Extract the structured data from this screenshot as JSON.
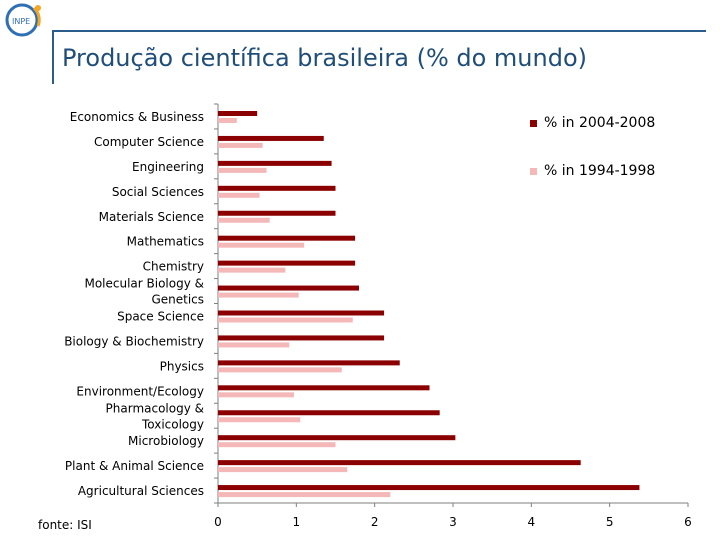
{
  "title": "Produção científica brasileira (% do mundo)",
  "source": "fonte: ISI",
  "colors": {
    "title": "#1f4e79",
    "frame": "#2b5d8c",
    "series_2004": "#8b0000",
    "series_1994": "#f4b8b8"
  },
  "logo": {
    "icon": "ufmg-logo-icon"
  },
  "chart_data": {
    "type": "bar",
    "orientation": "horizontal",
    "categories": [
      "Economics & Business",
      "Computer Science",
      "Engineering",
      "Social Sciences",
      "Materials Science",
      "Mathematics",
      "Chemistry",
      "Molecular Biology & Genetics",
      "Space Science",
      "Biology & Biochemistry",
      "Physics",
      "Environment/Ecology",
      "Pharmacology & Toxicology",
      "Microbiology",
      "Plant & Animal Science",
      "Agricultural Sciences"
    ],
    "category_lines": [
      [
        "Economics & Business"
      ],
      [
        "Computer Science"
      ],
      [
        "Engineering"
      ],
      [
        "Social Sciences"
      ],
      [
        "Materials Science"
      ],
      [
        "Mathematics"
      ],
      [
        "Chemistry"
      ],
      [
        "Molecular Biology &",
        "Genetics"
      ],
      [
        "Space Science"
      ],
      [
        "Biology & Biochemistry"
      ],
      [
        "Physics"
      ],
      [
        "Environment/Ecology"
      ],
      [
        "Pharmacology &",
        "Toxicology"
      ],
      [
        "Microbiology"
      ],
      [
        "Plant & Animal Science"
      ],
      [
        "Agricultural Sciences"
      ]
    ],
    "series": [
      {
        "name": "% in 2004-2008",
        "values": [
          0.5,
          1.35,
          1.45,
          1.5,
          1.5,
          1.75,
          1.75,
          1.8,
          2.12,
          2.12,
          2.32,
          2.7,
          2.83,
          3.03,
          4.63,
          5.38
        ]
      },
      {
        "name": "% in 1994-1998",
        "values": [
          0.24,
          0.57,
          0.62,
          0.53,
          0.66,
          1.1,
          0.86,
          1.03,
          1.72,
          0.91,
          1.58,
          0.97,
          1.05,
          1.5,
          1.65,
          2.2
        ]
      }
    ],
    "xlim": [
      0,
      6
    ],
    "xticks": [
      "0",
      "1",
      "2",
      "3",
      "4",
      "5",
      "6"
    ],
    "legend_placement": "top-right",
    "grid": false
  }
}
